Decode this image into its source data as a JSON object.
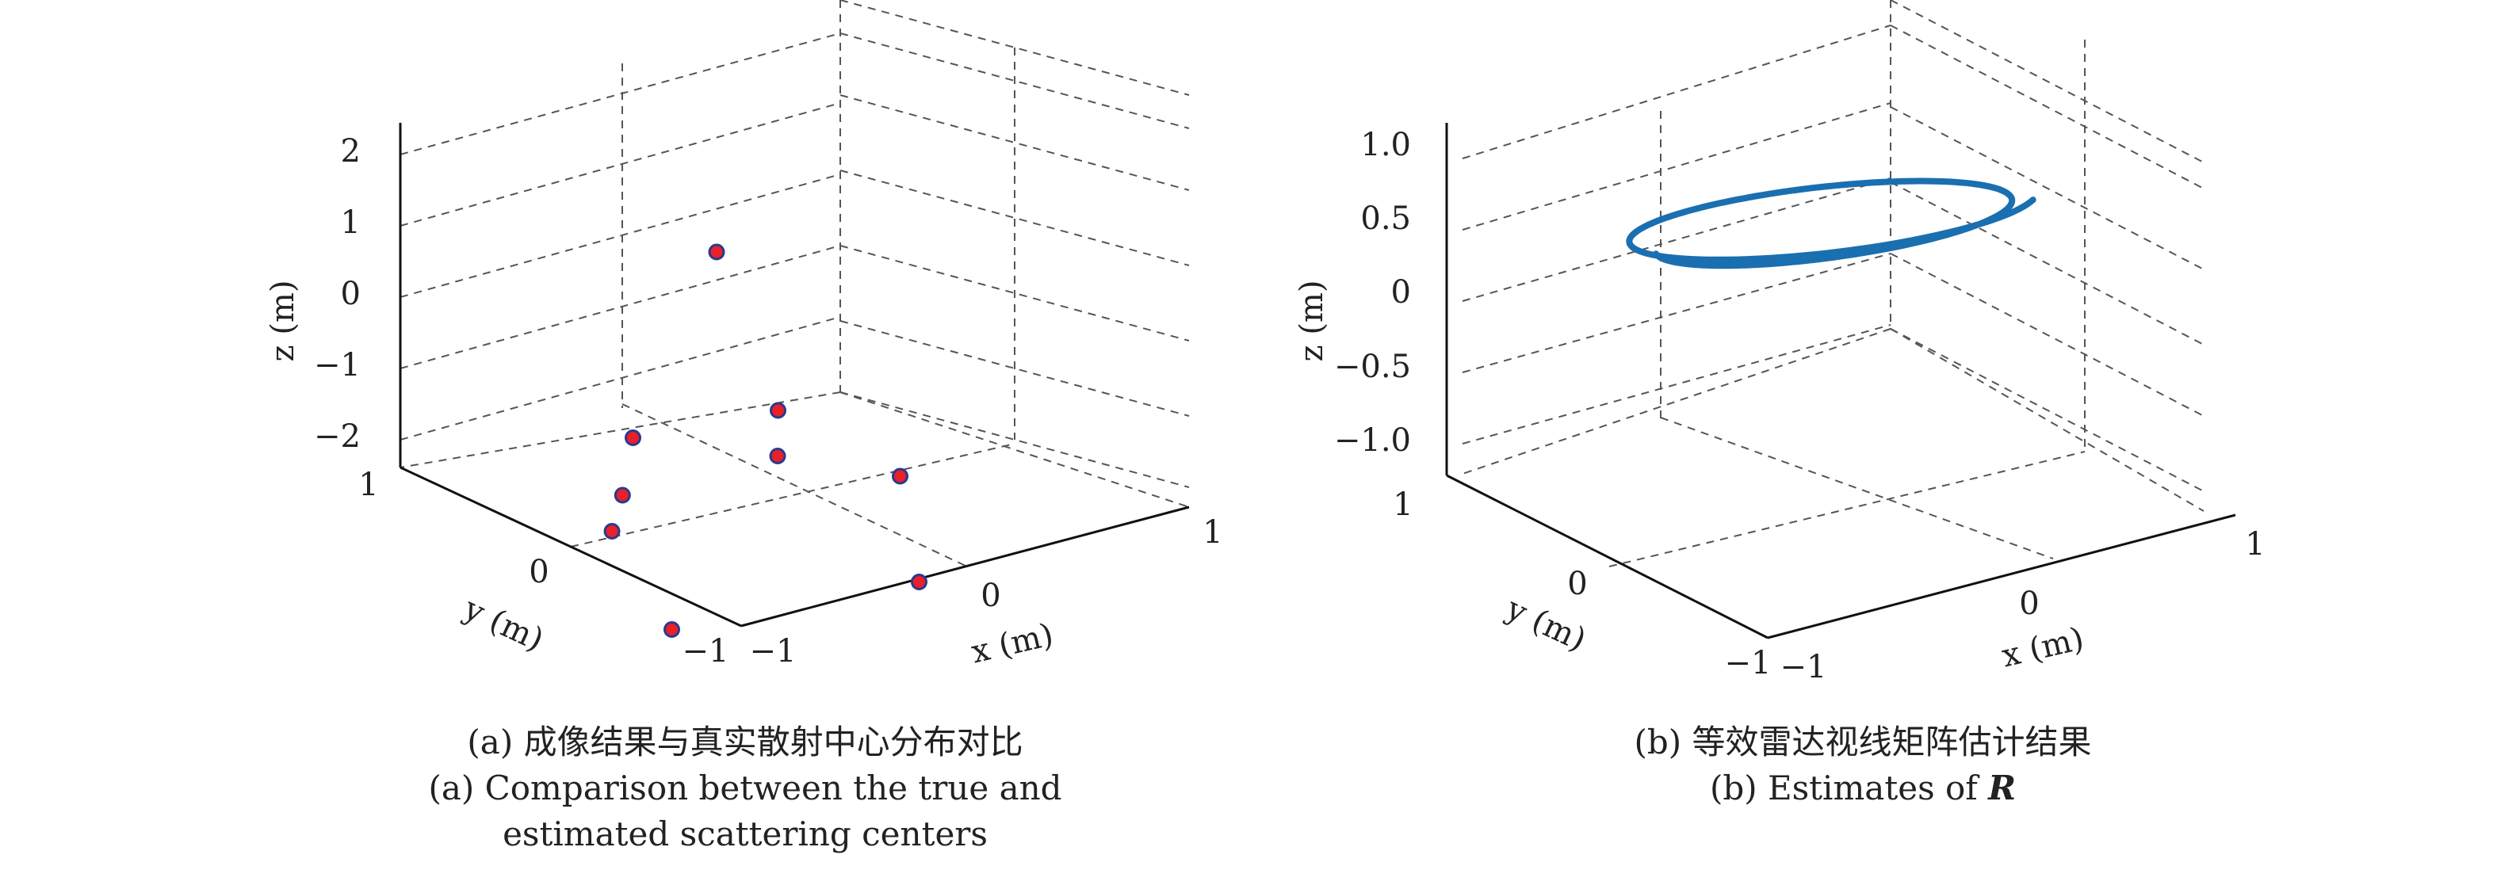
{
  "chart_data": [
    {
      "type": "scatter3d",
      "title": "",
      "xlabel": "x (m)",
      "ylabel": "y (m)",
      "zlabel": "z (m)",
      "xlim": [
        -1,
        1
      ],
      "ylim": [
        -1,
        1
      ],
      "zlim": [
        -2.5,
        2.5
      ],
      "x_ticks": [
        "−1",
        "0",
        "1"
      ],
      "y_ticks": [
        "−1",
        "0",
        "1"
      ],
      "z_ticks": [
        "2",
        "1",
        "0",
        "−1",
        "−2"
      ],
      "grid": true,
      "marker_color": "#e8202a",
      "marker_edge_color": "#2a3a8c",
      "points": [
        {
          "x": 0.2,
          "y": 0.6,
          "z": 1.7
        },
        {
          "x": -0.5,
          "y": 0.3,
          "z": -0.2
        },
        {
          "x": -0.6,
          "y": 0.25,
          "z": -0.9
        },
        {
          "x": -0.7,
          "y": 0.2,
          "z": -1.3
        },
        {
          "x": 0.4,
          "y": 0.5,
          "z": -0.6
        },
        {
          "x": 0.3,
          "y": 0.4,
          "z": -1.1
        },
        {
          "x": 0.6,
          "y": 0.1,
          "z": -1.4
        },
        {
          "x": -0.9,
          "y": -0.3,
          "z": -2.2
        },
        {
          "x": 0.3,
          "y": -0.3,
          "z": -2.4
        }
      ],
      "caption_line1": "(a) 成像结果与真实散射中心分布对比",
      "caption_line2": "(a) Comparison between the true and",
      "caption_line3": "estimated scattering centers"
    },
    {
      "type": "line3d",
      "title": "",
      "xlabel": "x (m)",
      "ylabel": "y (m)",
      "zlabel": "z (m)",
      "xlim": [
        -1,
        1
      ],
      "ylim": [
        -1,
        1
      ],
      "zlim": [
        -1.2,
        1.2
      ],
      "x_ticks": [
        "−1",
        "0",
        "1"
      ],
      "y_ticks": [
        "−1",
        "0",
        "1"
      ],
      "z_ticks": [
        "1.0",
        "0.5",
        "0",
        "−0.5",
        "−1.0"
      ],
      "grid": true,
      "line_color": "#1a6fb0",
      "series": {
        "description_free": true,
        "turns": 1.45,
        "radius": 0.92,
        "z_start": 0.48,
        "z_tilt": 0.35
      },
      "caption_line1": "(b) 等效雷达视线矩阵估计结果",
      "caption_line2_prefix": "(b) Estimates of ",
      "caption_symbol": "R"
    }
  ]
}
